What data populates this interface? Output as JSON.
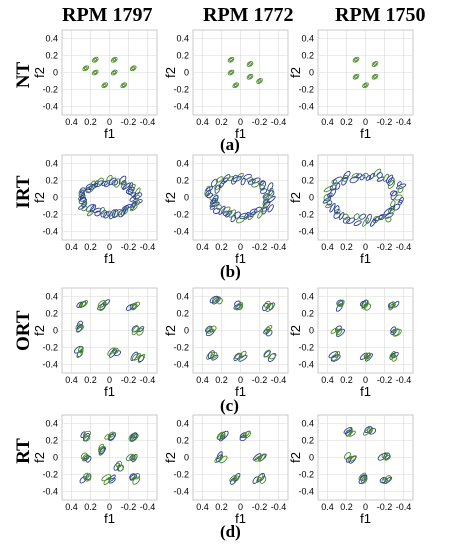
{
  "columns": [
    "RPM 1797",
    "RPM 1772",
    "RPM 1750"
  ],
  "rows": [
    {
      "label": "NT",
      "sub": "(a)"
    },
    {
      "label": "IRT",
      "sub": "(b)"
    },
    {
      "label": "ORT",
      "sub": "(c)"
    },
    {
      "label": "RT",
      "sub": "(d)"
    }
  ],
  "axes": {
    "xlabel": "f1",
    "ylabel": "f2",
    "xticks": [
      "0.4",
      "0.2",
      "0",
      "-0.2",
      "-0.4"
    ],
    "yticks": [
      "0.4",
      "0.2",
      "0",
      "-0.2",
      "-0.4"
    ],
    "xlim": [
      0.5,
      -0.5
    ],
    "ylim": [
      -0.5,
      0.5
    ],
    "grid": true
  },
  "colors": {
    "contour_green": "#4a8a2a",
    "contour_blue": "#2a3f9a",
    "grid": "#d9d9d9"
  },
  "chart_data": [
    {
      "type": "heatmap",
      "row": "NT",
      "column": "RPM 1797",
      "x_axis": "f1",
      "y_axis": "f2",
      "peaks": [
        [
          0.15,
          0.15
        ],
        [
          0.15,
          0
        ],
        [
          -0.05,
          0.15
        ],
        [
          -0.05,
          0
        ],
        [
          0.05,
          -0.15
        ],
        [
          -0.15,
          -0.15
        ],
        [
          0.25,
          0.05
        ],
        [
          -0.25,
          0.05
        ]
      ]
    },
    {
      "type": "heatmap",
      "row": "NT",
      "column": "RPM 1772",
      "x_axis": "f1",
      "y_axis": "f2",
      "peaks": [
        [
          0.1,
          0.15
        ],
        [
          0.1,
          0
        ],
        [
          -0.1,
          0.1
        ],
        [
          -0.1,
          -0.05
        ],
        [
          0.05,
          -0.15
        ],
        [
          -0.2,
          -0.1
        ]
      ]
    },
    {
      "type": "heatmap",
      "row": "NT",
      "column": "RPM 1750",
      "x_axis": "f1",
      "y_axis": "f2",
      "peaks": [
        [
          0.1,
          0.15
        ],
        [
          0.1,
          -0.05
        ],
        [
          -0.1,
          0.1
        ],
        [
          -0.1,
          -0.05
        ],
        [
          0,
          -0.15
        ]
      ]
    },
    {
      "type": "heatmap",
      "row": "IRT",
      "column": "RPM 1797",
      "x_axis": "f1",
      "y_axis": "f2",
      "ring": {
        "center": [
          0,
          0
        ],
        "rx": 0.3,
        "ry": 0.2
      }
    },
    {
      "type": "heatmap",
      "row": "IRT",
      "column": "RPM 1772",
      "x_axis": "f1",
      "y_axis": "f2",
      "ring": {
        "center": [
          0,
          0
        ],
        "rx": 0.33,
        "ry": 0.23
      }
    },
    {
      "type": "heatmap",
      "row": "IRT",
      "column": "RPM 1750",
      "x_axis": "f1",
      "y_axis": "f2",
      "ring": {
        "center": [
          0,
          0
        ],
        "rx": 0.36,
        "ry": 0.28
      }
    },
    {
      "type": "heatmap",
      "row": "ORT",
      "column": "RPM 1797",
      "x_axis": "f1",
      "y_axis": "f2",
      "clusters": [
        [
          0.3,
          0.3
        ],
        [
          0.05,
          0.3
        ],
        [
          -0.25,
          0.3
        ],
        [
          0.3,
          0.05
        ],
        [
          -0.3,
          0
        ],
        [
          0.3,
          -0.25
        ],
        [
          -0.05,
          -0.25
        ],
        [
          -0.3,
          -0.3
        ]
      ]
    },
    {
      "type": "heatmap",
      "row": "ORT",
      "column": "RPM 1772",
      "x_axis": "f1",
      "y_axis": "f2",
      "clusters": [
        [
          0.25,
          0.35
        ],
        [
          0,
          0.3
        ],
        [
          -0.3,
          0.3
        ],
        [
          0.3,
          0
        ],
        [
          -0.3,
          0
        ],
        [
          0.3,
          -0.3
        ],
        [
          0,
          -0.3
        ],
        [
          -0.3,
          -0.3
        ]
      ]
    },
    {
      "type": "heatmap",
      "row": "ORT",
      "column": "RPM 1750",
      "x_axis": "f1",
      "y_axis": "f2",
      "clusters": [
        [
          0.25,
          0.3
        ],
        [
          0,
          0.3
        ],
        [
          -0.3,
          0.3
        ],
        [
          0.3,
          0
        ],
        [
          -0.3,
          0
        ],
        [
          0.3,
          -0.3
        ],
        [
          0,
          -0.3
        ],
        [
          -0.3,
          -0.3
        ]
      ]
    },
    {
      "type": "heatmap",
      "row": "RT",
      "column": "RPM 1797",
      "x_axis": "f1",
      "y_axis": "f2",
      "clusters": [
        [
          0.25,
          0.25
        ],
        [
          0,
          0.25
        ],
        [
          -0.25,
          0.25
        ],
        [
          0.25,
          0
        ],
        [
          -0.25,
          0
        ],
        [
          0.25,
          -0.25
        ],
        [
          0,
          -0.25
        ],
        [
          -0.25,
          -0.25
        ],
        [
          0.1,
          0.1
        ],
        [
          -0.1,
          -0.1
        ]
      ]
    },
    {
      "type": "heatmap",
      "row": "RT",
      "column": "RPM 1772",
      "x_axis": "f1",
      "y_axis": "f2",
      "clusters": [
        [
          0.2,
          0.25
        ],
        [
          -0.05,
          0.25
        ],
        [
          0.2,
          0
        ],
        [
          -0.2,
          0
        ],
        [
          0.05,
          -0.25
        ],
        [
          -0.2,
          -0.25
        ]
      ]
    },
    {
      "type": "heatmap",
      "row": "RT",
      "column": "RPM 1750",
      "x_axis": "f1",
      "y_axis": "f2",
      "clusters": [
        [
          0.15,
          0.3
        ],
        [
          -0.05,
          0.3
        ],
        [
          0.15,
          0
        ],
        [
          -0.2,
          0
        ],
        [
          0,
          -0.25
        ],
        [
          -0.2,
          -0.25
        ]
      ]
    }
  ]
}
